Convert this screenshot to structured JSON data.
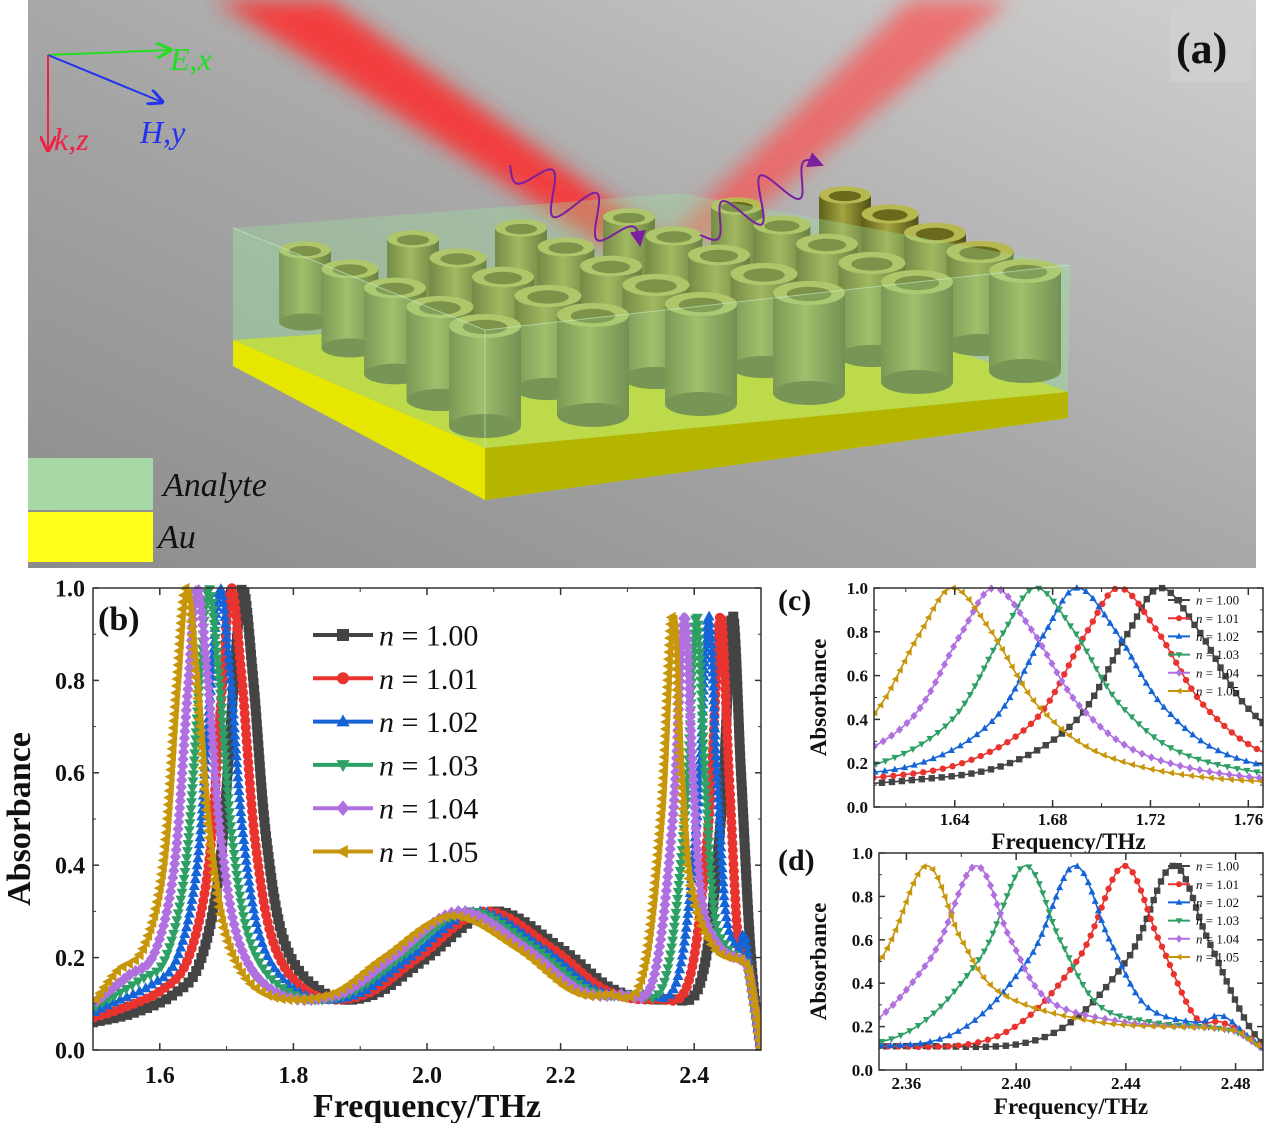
{
  "scene": {
    "panel_label": "(a)",
    "axes": {
      "e_label": "E,x",
      "h_label": "H,y",
      "k_label": "k,z"
    },
    "legend": [
      {
        "label": "Analyte",
        "color": "#a6d9a6"
      },
      {
        "label": "Au",
        "color": "#ffff1a"
      }
    ],
    "colors": {
      "beam": "#ff3030",
      "wave": "#7a1fa0",
      "cylinder": "#9a9a32",
      "substrate": "#e8e800",
      "analyte": "#9fe09f"
    }
  },
  "chart_data": {
    "type": "line",
    "series": [
      {
        "name": "n = 1.00",
        "color": "#444444",
        "marker": "square",
        "x": [
          1.5,
          1.56,
          1.62,
          1.66,
          1.69,
          1.71,
          1.724,
          1.74,
          1.76,
          1.79,
          1.85,
          1.92,
          2.0,
          2.1,
          2.2,
          2.28,
          2.36,
          2.41,
          2.44,
          2.457,
          2.47,
          2.485,
          2.5
        ],
        "y": [
          0.06,
          0.08,
          0.12,
          0.19,
          0.4,
          0.78,
          1.0,
          0.8,
          0.45,
          0.22,
          0.12,
          0.12,
          0.2,
          0.3,
          0.22,
          0.13,
          0.11,
          0.15,
          0.5,
          0.94,
          0.6,
          0.2,
          0.0
        ]
      },
      {
        "name": "n = 1.01",
        "color": "#e8332f",
        "marker": "circle",
        "x": [
          1.5,
          1.543,
          1.603,
          1.643,
          1.673,
          1.693,
          1.707,
          1.723,
          1.743,
          1.773,
          1.83,
          1.907,
          1.987,
          2.087,
          2.187,
          2.267,
          2.342,
          2.392,
          2.422,
          2.439,
          2.452,
          2.465,
          2.475,
          2.485,
          2.5
        ],
        "y": [
          0.07,
          0.09,
          0.13,
          0.2,
          0.4,
          0.78,
          1.0,
          0.8,
          0.45,
          0.22,
          0.12,
          0.12,
          0.2,
          0.3,
          0.22,
          0.13,
          0.11,
          0.15,
          0.5,
          0.94,
          0.6,
          0.25,
          0.22,
          0.15,
          0.0
        ]
      },
      {
        "name": "n = 1.02",
        "color": "#1464d8",
        "marker": "triangle-up",
        "x": [
          1.5,
          1.526,
          1.586,
          1.626,
          1.656,
          1.676,
          1.69,
          1.706,
          1.726,
          1.756,
          1.816,
          1.894,
          1.974,
          2.074,
          2.174,
          2.254,
          2.324,
          2.374,
          2.404,
          2.421,
          2.434,
          2.447,
          2.465,
          2.475,
          2.485,
          2.5
        ],
        "y": [
          0.08,
          0.1,
          0.14,
          0.2,
          0.4,
          0.78,
          1.0,
          0.8,
          0.45,
          0.22,
          0.12,
          0.12,
          0.2,
          0.3,
          0.22,
          0.13,
          0.12,
          0.15,
          0.5,
          0.94,
          0.6,
          0.3,
          0.22,
          0.25,
          0.15,
          0.0
        ]
      },
      {
        "name": "n = 1.03",
        "color": "#2ea065",
        "marker": "triangle-down",
        "x": [
          1.5,
          1.569,
          1.609,
          1.639,
          1.659,
          1.673,
          1.689,
          1.709,
          1.739,
          1.8,
          1.881,
          1.961,
          2.061,
          2.161,
          2.241,
          2.306,
          2.356,
          2.386,
          2.403,
          2.416,
          2.43,
          2.45,
          2.475,
          2.485,
          2.5
        ],
        "y": [
          0.09,
          0.15,
          0.2,
          0.4,
          0.78,
          1.0,
          0.8,
          0.45,
          0.22,
          0.12,
          0.12,
          0.2,
          0.3,
          0.22,
          0.13,
          0.12,
          0.15,
          0.5,
          0.94,
          0.6,
          0.3,
          0.22,
          0.19,
          0.14,
          0.0
        ]
      },
      {
        "name": "n = 1.04",
        "color": "#b070e0",
        "marker": "diamond",
        "x": [
          1.5,
          1.552,
          1.592,
          1.622,
          1.642,
          1.656,
          1.672,
          1.692,
          1.722,
          1.78,
          1.868,
          1.948,
          2.048,
          2.148,
          2.228,
          2.288,
          2.338,
          2.368,
          2.385,
          2.398,
          2.412,
          2.44,
          2.475,
          2.485,
          2.5
        ],
        "y": [
          0.1,
          0.16,
          0.21,
          0.4,
          0.78,
          1.0,
          0.8,
          0.45,
          0.22,
          0.12,
          0.12,
          0.2,
          0.3,
          0.22,
          0.13,
          0.12,
          0.15,
          0.5,
          0.94,
          0.6,
          0.32,
          0.22,
          0.19,
          0.14,
          0.0
        ]
      },
      {
        "name": "n = 1.05",
        "color": "#c8960a",
        "marker": "triangle-left",
        "x": [
          1.5,
          1.535,
          1.575,
          1.605,
          1.625,
          1.639,
          1.655,
          1.675,
          1.705,
          1.76,
          1.855,
          1.935,
          2.035,
          2.135,
          2.215,
          2.27,
          2.32,
          2.35,
          2.367,
          2.38,
          2.395,
          2.43,
          2.475,
          2.485,
          2.5
        ],
        "y": [
          0.1,
          0.17,
          0.22,
          0.4,
          0.78,
          1.0,
          0.8,
          0.45,
          0.22,
          0.12,
          0.12,
          0.2,
          0.29,
          0.22,
          0.13,
          0.12,
          0.15,
          0.5,
          0.94,
          0.6,
          0.35,
          0.22,
          0.19,
          0.14,
          0.0
        ]
      }
    ],
    "panels": [
      {
        "label": "(b)",
        "xlabel": "Frequency/THz",
        "ylabel": "Absorbance",
        "xlim": [
          1.5,
          2.5
        ],
        "ylim": [
          0,
          1.0
        ],
        "xticks": [
          "1.6",
          "1.8",
          "2.0",
          "2.2",
          "2.4"
        ],
        "yticks": [
          "0.0",
          "0.2",
          "0.4",
          "0.6",
          "0.8",
          "1.0"
        ],
        "legend_position": "top-center"
      },
      {
        "label": "(c)",
        "xlabel": "Frequency/THz",
        "ylabel": "Absorbance",
        "xlim": [
          1.607,
          1.766
        ],
        "ylim": [
          0,
          1.0
        ],
        "xticks": [
          "1.64",
          "1.68",
          "1.72",
          "1.76"
        ],
        "yticks": [
          "0.0",
          "0.2",
          "0.4",
          "0.6",
          "0.8",
          "1.0"
        ],
        "legend_position": "top-right"
      },
      {
        "label": "(d)",
        "xlabel": "Frequency/THz",
        "ylabel": "Absorbance",
        "xlim": [
          2.35,
          2.49
        ],
        "ylim": [
          0,
          1.0
        ],
        "xticks": [
          "2.36",
          "2.40",
          "2.44",
          "2.48"
        ],
        "yticks": [
          "0.0",
          "0.2",
          "0.4",
          "0.6",
          "0.8",
          "1.0"
        ],
        "legend_position": "top-right"
      }
    ]
  }
}
